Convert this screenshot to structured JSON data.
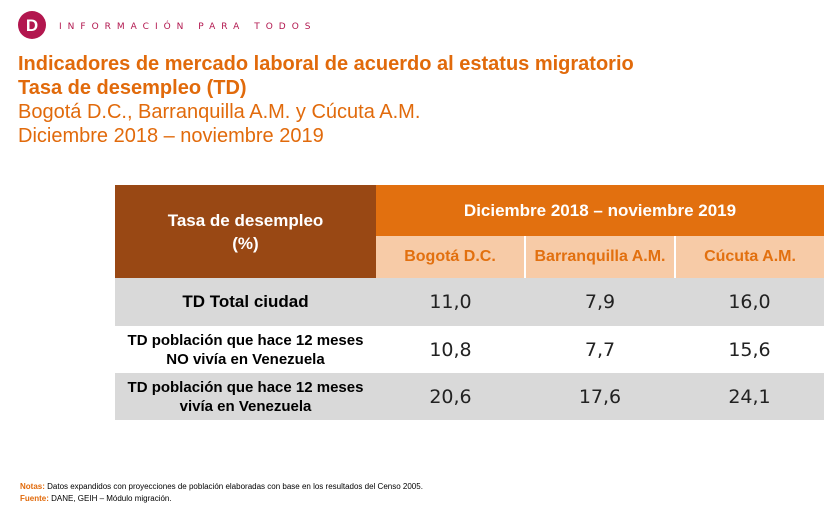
{
  "header": {
    "logo_letter": "D",
    "tagline": "INFORMACIÓN PARA TODOS"
  },
  "title": {
    "line1": "Indicadores de mercado laboral de acuerdo al estatus migratorio",
    "line2": "Tasa de desempleo (TD)",
    "line3": "Bogotá D.C., Barranquilla A.M. y Cúcuta A.M.",
    "line4": "Diciembre 2018 – noviembre 2019"
  },
  "table": {
    "corner_line1": "Tasa de desempleo",
    "corner_line2": "(%)",
    "period": "Diciembre 2018 – noviembre 2019",
    "columns": [
      "Bogotá D.C.",
      "Barranquilla A.M.",
      "Cúcuta A.M."
    ],
    "rows": [
      {
        "label_line1": "TD Total ciudad",
        "label_line2": "",
        "values": [
          "11,0",
          "7,9",
          "16,0"
        ]
      },
      {
        "label_line1": "TD población que hace 12 meses",
        "label_line2": "NO vivía en Venezuela",
        "values": [
          "10,8",
          "7,7",
          "15,6"
        ]
      },
      {
        "label_line1": "TD población que hace 12 meses",
        "label_line2": "vivía en Venezuela",
        "values": [
          "20,6",
          "17,6",
          "24,1"
        ]
      }
    ]
  },
  "footer": {
    "notes_label": "Notas:",
    "notes_text": " Datos expandidos con proyecciones de población elaboradas con base en los resultados del Censo 2005.",
    "source_label": "Fuente:",
    "source_text": " DANE, GEIH – Módulo migración."
  },
  "colors": {
    "brand": "#b2164e",
    "accent_orange": "#e2700f",
    "header_brown": "#994814",
    "subheader_peach": "#f7cba7",
    "row_grey": "#d9d9d9"
  }
}
